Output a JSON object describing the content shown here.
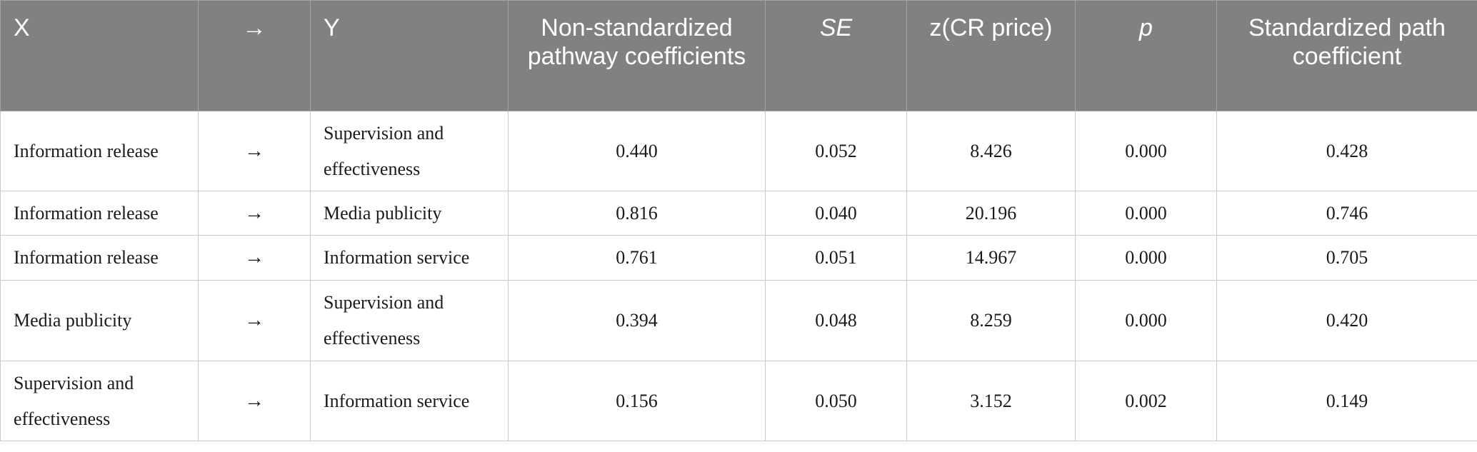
{
  "table": {
    "headers": [
      "X",
      "→",
      "Y",
      "Non-standardized pathway coefficients",
      "SE",
      "z(CR price)",
      "p",
      "Standardized path coefficient"
    ],
    "rows": [
      [
        "Information release",
        "→",
        "Supervision and effectiveness",
        "0.440",
        "0.052",
        "8.426",
        "0.000",
        "0.428"
      ],
      [
        "Information release",
        "→",
        "Media publicity",
        "0.816",
        "0.040",
        "20.196",
        "0.000",
        "0.746"
      ],
      [
        "Information release",
        "→",
        "Information service",
        "0.761",
        "0.051",
        "14.967",
        "0.000",
        "0.705"
      ],
      [
        "Media publicity",
        "→",
        "Supervision and effectiveness",
        "0.394",
        "0.048",
        "8.259",
        "0.000",
        "0.420"
      ],
      [
        "Supervision and effectiveness",
        "→",
        "Information service",
        "0.156",
        "0.050",
        "3.152",
        "0.002",
        "0.149"
      ]
    ]
  },
  "colors": {
    "header_bg": "#808180",
    "header_text": "#ffffff",
    "grid": "#c9c9c9"
  }
}
